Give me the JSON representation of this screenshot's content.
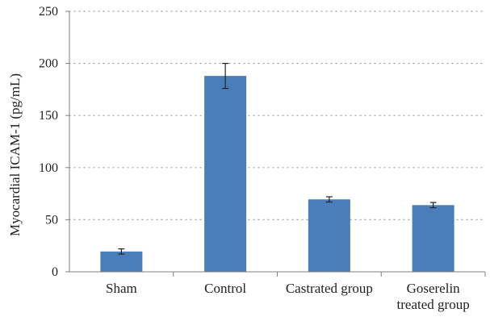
{
  "chart_data": {
    "type": "bar",
    "title": "",
    "xlabel": "",
    "ylabel": "Myocardial ICAM-1 (pg/mL)",
    "categories": [
      [
        "Sham"
      ],
      [
        "Control"
      ],
      [
        "Castrated group"
      ],
      [
        "Goserelin",
        "treated group"
      ]
    ],
    "values": [
      19.5,
      188,
      69.5,
      64
    ],
    "errors": [
      2.5,
      12,
      2.5,
      2.5
    ],
    "ylim": [
      0,
      250
    ],
    "yticks": [
      0,
      50,
      100,
      150,
      200,
      250
    ],
    "grid": "horizontal-dotted",
    "colors": {
      "bar": "#4a7ebb",
      "axis": "#7f7f7f",
      "grid": "#9a9a9a",
      "error": "#222222"
    }
  }
}
